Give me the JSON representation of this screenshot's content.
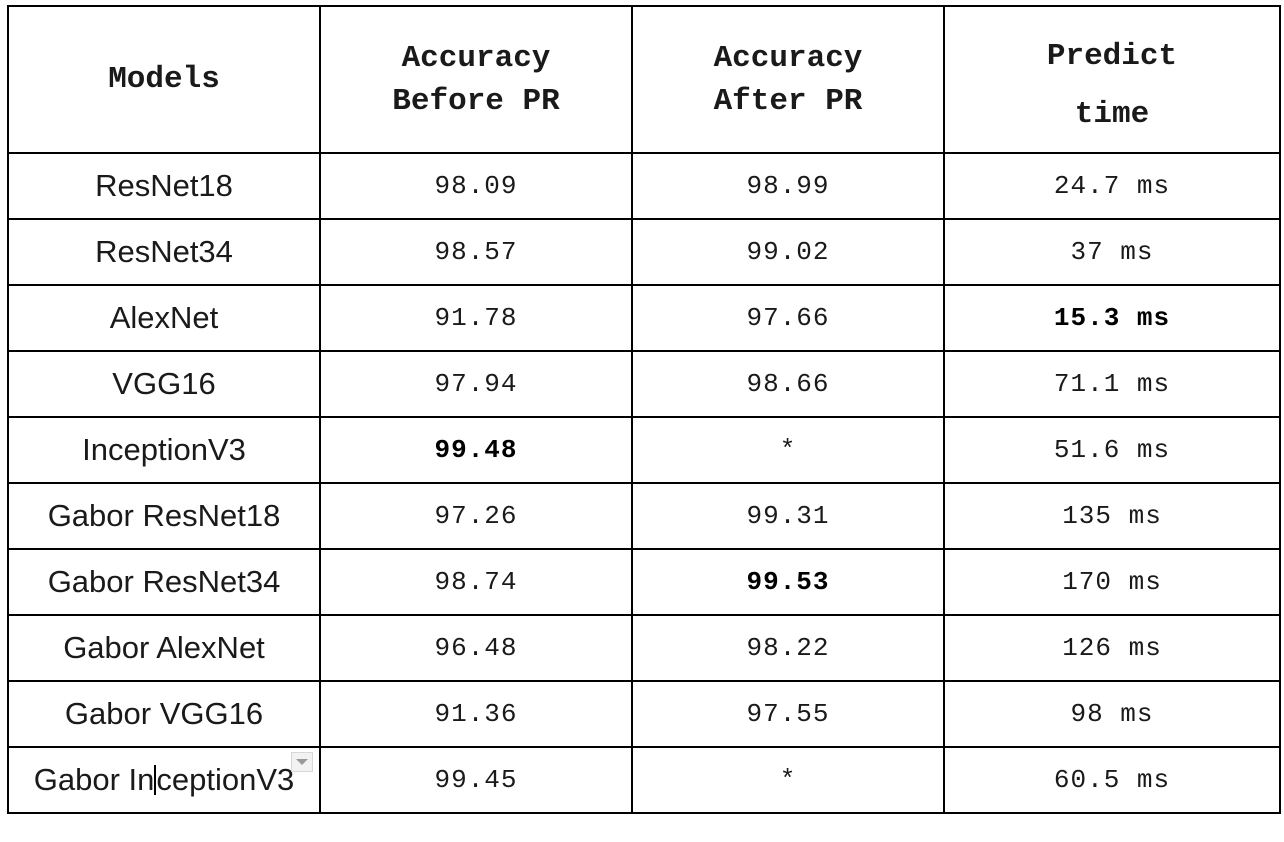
{
  "table": {
    "headers": {
      "models": "Models",
      "acc_before_line1": "Accuracy",
      "acc_before_line2": "Before PR",
      "acc_after_line1": "Accuracy",
      "acc_after_line2": "After PR",
      "predict_line1": "Predict",
      "predict_line2": "time"
    },
    "rows": [
      {
        "model": "ResNet18",
        "before": "98.09",
        "after": "98.99",
        "time": "24.7 ms"
      },
      {
        "model": "ResNet34",
        "before": "98.57",
        "after": "99.02",
        "time": "37 ms"
      },
      {
        "model": "AlexNet",
        "before": "91.78",
        "after": "97.66",
        "time": "15.3 ms"
      },
      {
        "model": "VGG16",
        "before": "97.94",
        "after": "98.66",
        "time": "71.1 ms"
      },
      {
        "model": "InceptionV3",
        "before": "99.48",
        "after": "*",
        "time": "51.6 ms"
      },
      {
        "model": "Gabor ResNet18",
        "before": "97.26",
        "after": "99.31",
        "time": "135 ms"
      },
      {
        "model": "Gabor ResNet34",
        "before": "98.74",
        "after": "99.53",
        "time": "170 ms"
      },
      {
        "model": "Gabor AlexNet",
        "before": "96.48",
        "after": "98.22",
        "time": "126 ms"
      },
      {
        "model": "Gabor VGG16",
        "before": "91.36",
        "after": "97.55",
        "time": "98 ms"
      },
      {
        "model_part1": "Gabor In",
        "model_part2": "ceptionV3",
        "before": "99.45",
        "after": "*",
        "time": "60.5 ms"
      }
    ]
  }
}
